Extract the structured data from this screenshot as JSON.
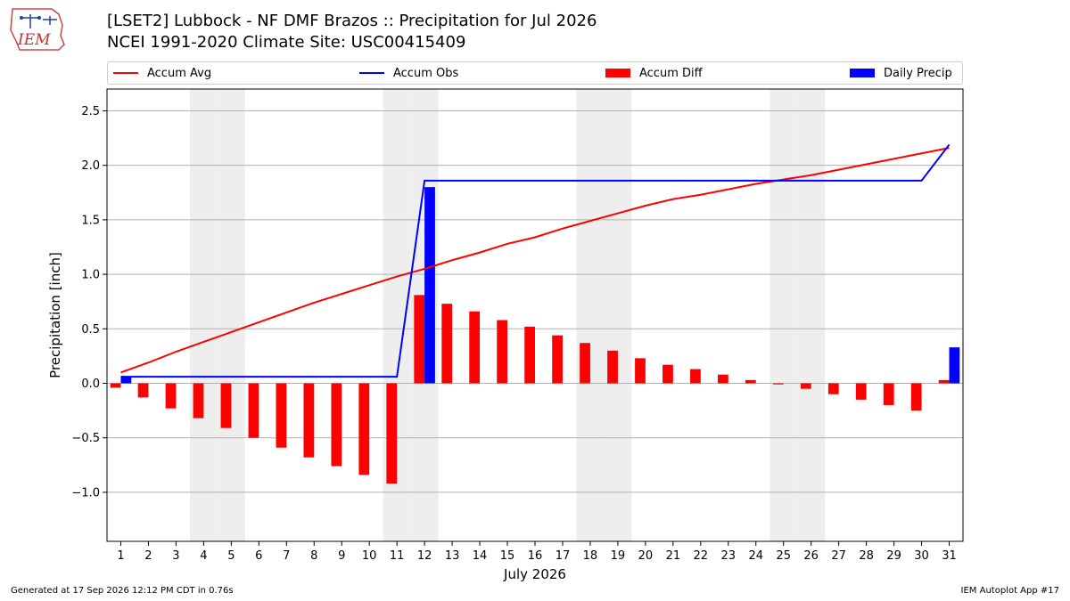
{
  "header": {
    "logo_text": "IEM",
    "title_line1": "[LSET2] Lubbock - NF DMF Brazos :: Precipitation for Jul 2026",
    "title_line2": "NCEI 1991-2020 Climate Site: USC00415409"
  },
  "footer": {
    "generated": "Generated at 17 Sep 2026 12:12 PM CDT in 0.76s",
    "app": "IEM Autoplot App #17"
  },
  "colors": {
    "avg": "#ff0000",
    "obs": "#0000ff",
    "diff": "#ff0000",
    "daily": "#0000ff",
    "weekend": "#eeeeee",
    "grid": "#b0b0b0"
  },
  "chart_data": {
    "type": "bar",
    "xlabel": "July 2026",
    "ylabel": "Precipitation [inch]",
    "ylim": [
      -1.45,
      2.7
    ],
    "yticks": [
      -1.0,
      -0.5,
      0.0,
      0.5,
      1.0,
      1.5,
      2.0,
      2.5
    ],
    "ytick_labels": [
      "−1.0",
      "−0.5",
      "0.0",
      "0.5",
      "1.0",
      "1.5",
      "2.0",
      "2.5"
    ],
    "grid": "horizontal",
    "legend_position": "top",
    "x": [
      1,
      2,
      3,
      4,
      5,
      6,
      7,
      8,
      9,
      10,
      11,
      12,
      13,
      14,
      15,
      16,
      17,
      18,
      19,
      20,
      21,
      22,
      23,
      24,
      25,
      26,
      27,
      28,
      29,
      30,
      31
    ],
    "weekend_days": [
      4,
      5,
      11,
      12,
      18,
      19,
      25,
      26
    ],
    "series": [
      {
        "name": "Accum Avg",
        "kind": "line",
        "values": [
          0.1,
          0.19,
          0.29,
          0.38,
          0.47,
          0.56,
          0.65,
          0.74,
          0.82,
          0.9,
          0.98,
          1.05,
          1.13,
          1.2,
          1.28,
          1.34,
          1.42,
          1.49,
          1.56,
          1.63,
          1.69,
          1.73,
          1.78,
          1.83,
          1.87,
          1.91,
          1.96,
          2.01,
          2.06,
          2.11,
          2.16
        ]
      },
      {
        "name": "Accum Obs",
        "kind": "line",
        "values": [
          0.06,
          0.06,
          0.06,
          0.06,
          0.06,
          0.06,
          0.06,
          0.06,
          0.06,
          0.06,
          0.06,
          1.86,
          1.86,
          1.86,
          1.86,
          1.86,
          1.86,
          1.86,
          1.86,
          1.86,
          1.86,
          1.86,
          1.86,
          1.86,
          1.86,
          1.86,
          1.86,
          1.86,
          1.86,
          1.86,
          2.19
        ]
      },
      {
        "name": "Accum Diff",
        "kind": "bar",
        "values": [
          -0.04,
          -0.13,
          -0.23,
          -0.32,
          -0.41,
          -0.5,
          -0.59,
          -0.68,
          -0.76,
          -0.84,
          -0.92,
          0.81,
          0.73,
          0.66,
          0.58,
          0.52,
          0.44,
          0.37,
          0.3,
          0.23,
          0.17,
          0.13,
          0.08,
          0.03,
          -0.01,
          -0.05,
          -0.1,
          -0.15,
          -0.2,
          -0.25,
          0.03
        ]
      },
      {
        "name": "Daily Precip",
        "kind": "bar",
        "values": [
          0.06,
          0,
          0,
          0,
          0,
          0,
          0,
          0,
          0,
          0,
          0,
          1.8,
          0,
          0,
          0,
          0,
          0,
          0,
          0,
          0,
          0,
          0,
          0,
          0,
          0,
          0,
          0,
          0,
          0,
          0,
          0.33
        ]
      }
    ]
  }
}
